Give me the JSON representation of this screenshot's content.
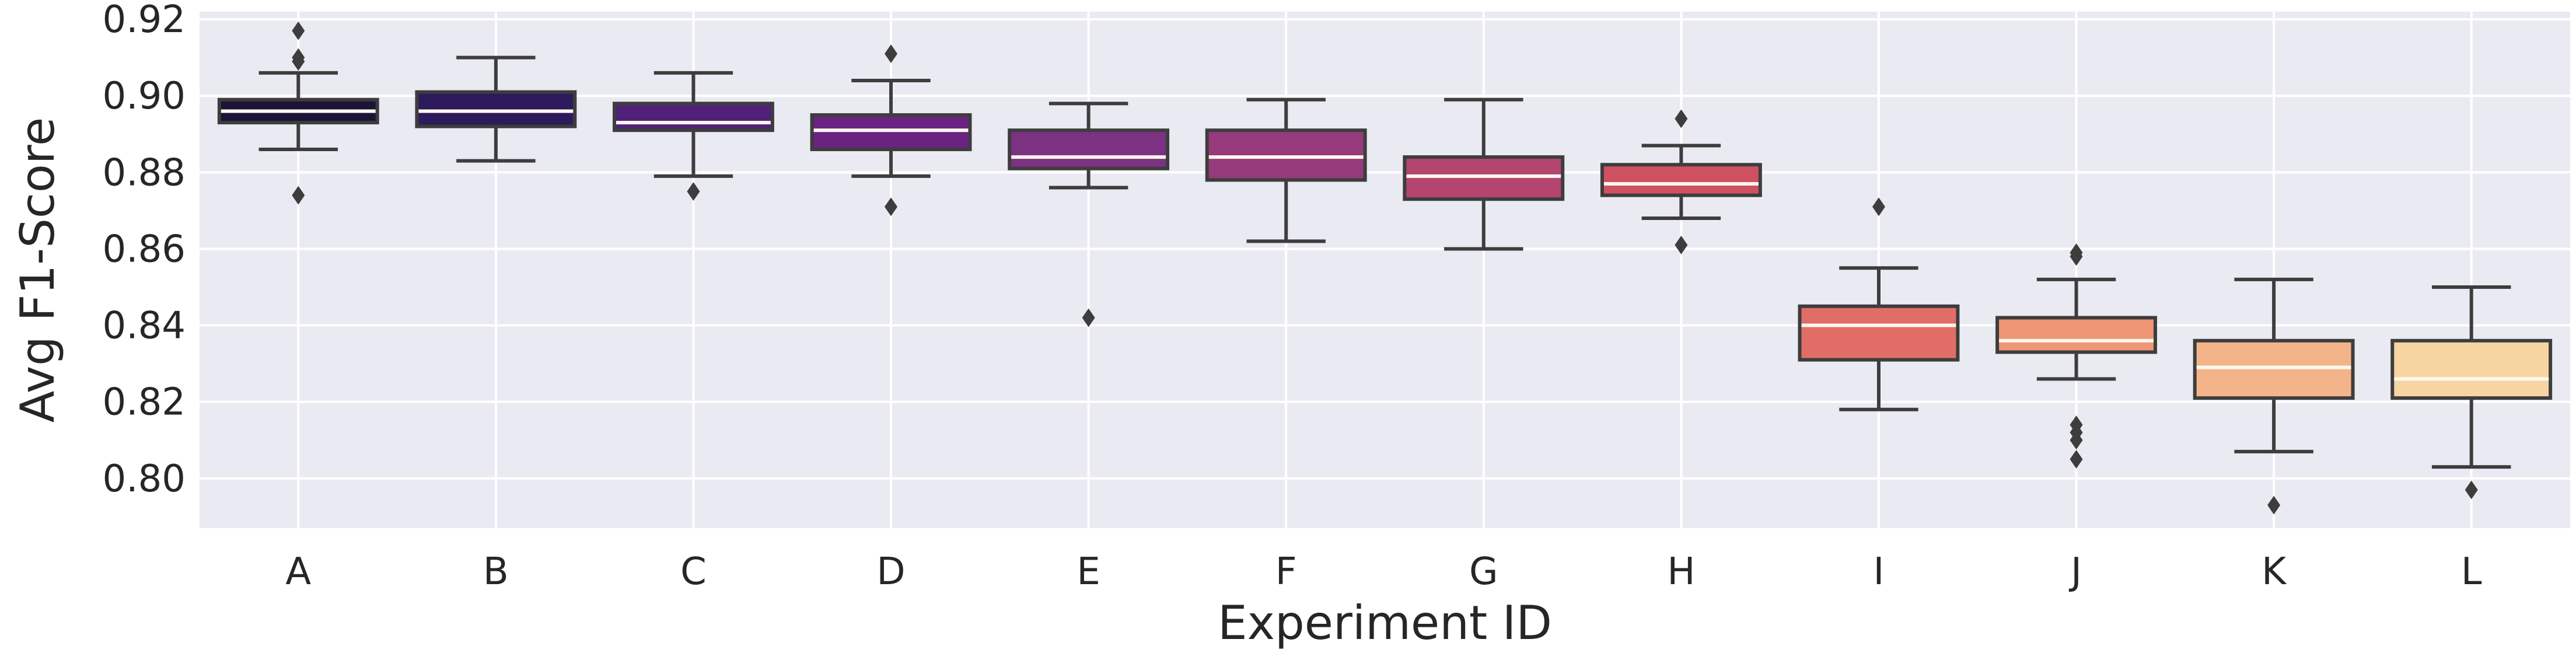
{
  "chart_data": {
    "type": "box",
    "xlabel": "Experiment ID",
    "ylabel": "Avg F1-Score",
    "ylim": [
      0.787,
      0.922
    ],
    "yticks": [
      0.8,
      0.82,
      0.84,
      0.86,
      0.88,
      0.9,
      0.92
    ],
    "ytick_labels": [
      "0.80",
      "0.82",
      "0.84",
      "0.86",
      "0.88",
      "0.90",
      "0.92"
    ],
    "grid": true,
    "background": "#eaeaf2",
    "categories": [
      "A",
      "B",
      "C",
      "D",
      "E",
      "F",
      "G",
      "H",
      "I",
      "J",
      "K",
      "L"
    ],
    "boxes": [
      {
        "category": "A",
        "color": "#1c1436",
        "whisker_low": 0.886,
        "q1": 0.893,
        "median": 0.896,
        "q3": 0.899,
        "whisker_high": 0.906,
        "outliers": [
          0.917,
          0.91,
          0.909,
          0.874
        ]
      },
      {
        "category": "B",
        "color": "#2d1a5c",
        "whisker_low": 0.883,
        "q1": 0.892,
        "median": 0.896,
        "q3": 0.901,
        "whisker_high": 0.91,
        "outliers": []
      },
      {
        "category": "C",
        "color": "#51217a",
        "whisker_low": 0.879,
        "q1": 0.891,
        "median": 0.893,
        "q3": 0.898,
        "whisker_high": 0.906,
        "outliers": [
          0.875
        ]
      },
      {
        "category": "D",
        "color": "#6a2381",
        "whisker_low": 0.879,
        "q1": 0.886,
        "median": 0.891,
        "q3": 0.895,
        "whisker_high": 0.904,
        "outliers": [
          0.911,
          0.871
        ]
      },
      {
        "category": "E",
        "color": "#7c3182",
        "whisker_low": 0.876,
        "q1": 0.881,
        "median": 0.884,
        "q3": 0.891,
        "whisker_high": 0.898,
        "outliers": [
          0.842
        ]
      },
      {
        "category": "F",
        "color": "#963a7b",
        "whisker_low": 0.862,
        "q1": 0.878,
        "median": 0.884,
        "q3": 0.891,
        "whisker_high": 0.899,
        "outliers": []
      },
      {
        "category": "G",
        "color": "#b3456f",
        "whisker_low": 0.86,
        "q1": 0.873,
        "median": 0.879,
        "q3": 0.884,
        "whisker_high": 0.899,
        "outliers": []
      },
      {
        "category": "H",
        "color": "#cf5161",
        "whisker_low": 0.868,
        "q1": 0.874,
        "median": 0.877,
        "q3": 0.882,
        "whisker_high": 0.887,
        "outliers": [
          0.894,
          0.861
        ]
      },
      {
        "category": "I",
        "color": "#e16e66",
        "whisker_low": 0.818,
        "q1": 0.831,
        "median": 0.84,
        "q3": 0.845,
        "whisker_high": 0.855,
        "outliers": [
          0.871
        ]
      },
      {
        "category": "J",
        "color": "#ee9675",
        "whisker_low": 0.826,
        "q1": 0.833,
        "median": 0.836,
        "q3": 0.842,
        "whisker_high": 0.852,
        "outliers": [
          0.859,
          0.858,
          0.814,
          0.812,
          0.81,
          0.805
        ]
      },
      {
        "category": "K",
        "color": "#f4b48a",
        "whisker_low": 0.807,
        "q1": 0.821,
        "median": 0.829,
        "q3": 0.836,
        "whisker_high": 0.852,
        "outliers": [
          0.793
        ]
      },
      {
        "category": "L",
        "color": "#f6d5a3",
        "whisker_low": 0.803,
        "q1": 0.821,
        "median": 0.826,
        "q3": 0.836,
        "whisker_high": 0.85,
        "outliers": [
          0.797
        ]
      }
    ]
  }
}
